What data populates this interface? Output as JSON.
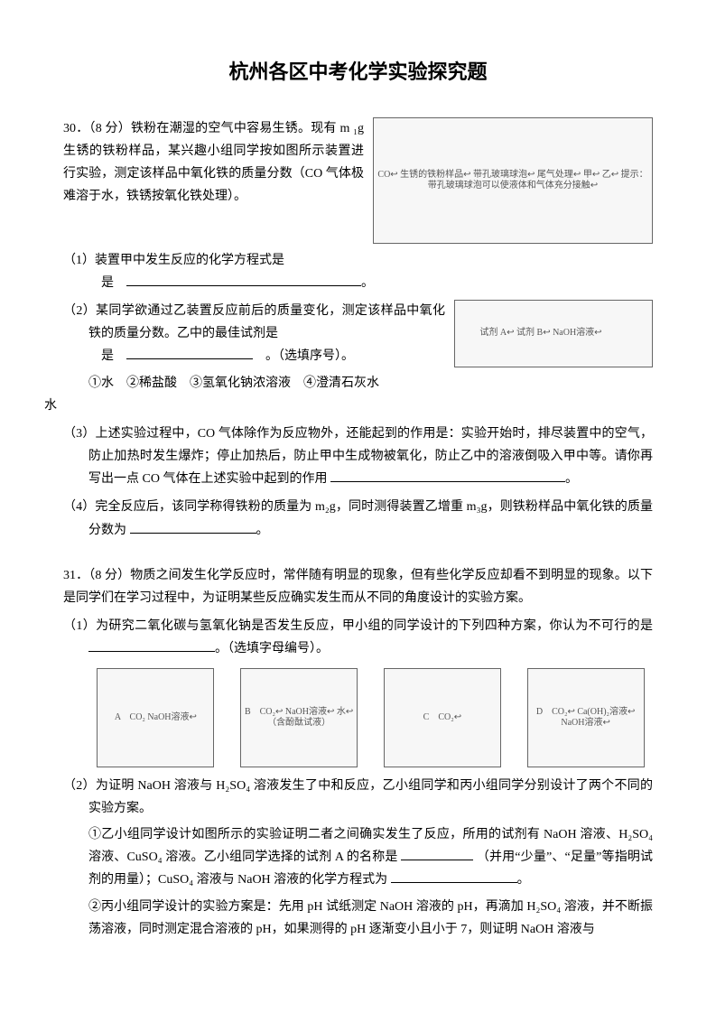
{
  "title": "杭州各区中考化学实验探究题",
  "q30": {
    "num": "30．",
    "points": "（8 分）",
    "stem": "铁粉在潮湿的空气中容易生锈。现有 m ₁g 生锈的铁粉样品，某兴趣小组同学按如图所示装置进行实验，测定该样品中氧化铁的质量分数（CO 气体极难溶于水，铁锈按氧化铁处理）。",
    "fig_labels": "CO↩ 生锈的铁粉样品↩ 带孔玻璃球泡↩ 尾气处理↩ 甲↩ 乙↩ 提示：带孔玻璃球泡可以使液体和气体充分接触↩",
    "s1": "（1）装置甲中发生反应的化学方程式是",
    "s1_end": "。",
    "s2a": "（2）某同学欲通过乙装置反应前后的质量变化，测定该样品中氧化铁的质量分数。乙中的最佳试剂是",
    "s2a_end": "。（选填序号）。",
    "fig_tubes_labels": "试剂 A↩ 试剂 B↩ NaOH溶液↩",
    "s2b": "①水　②稀盐酸　③氢氧化钠浓溶液　④澄清石灰水",
    "left_note": "水",
    "s3": "（3）上述实验过程中，CO 气体除作为反应物外，还能起到的作用是：实验开始时，排尽装置中的空气，防止加热时发生爆炸；停止加热后，防止甲中生成物被氧化，防止乙中的溶液倒吸入甲中等。请你再写出一点 CO 气体在上述实验中起到的作用",
    "s3_end": "。",
    "s4": "（4）完全反应后，该同学称得铁粉的质量为 m₂g，同时测得装置乙增重 m₃g，则铁粉样品中氧化铁的质量分数为",
    "s4_end": "。"
  },
  "q31": {
    "num": "31．",
    "points": "（8 分）",
    "stem": "物质之间发生化学反应时，常伴随有明显的现象，但有些化学反应却看不到明显的现象。以下是同学们在学习过程中，为证明某些反应确实发生而从不同的角度设计的实验方案。",
    "s1": "（1）为研究二氧化碳与氢氧化钠是否发生反应，甲小组的同学设计的下列四种方案，你认为不可行的是",
    "s1_end": "。（选填字母编号）。",
    "opts": {
      "A": "A　CO₂ NaOH溶液↩",
      "B": "B　CO₂↩ NaOH溶液↩ 水↩（含酚酞试液）",
      "C": "C　CO₂↩",
      "D": "D　CO₂↩ Ca(OH)₂溶液↩ NaOH溶液↩"
    },
    "s2": "（2）为证明 NaOH 溶液与 H₂SO₄ 溶液发生了中和反应，乙小组同学和丙小组同学分别设计了两个不同的实验方案。",
    "s2_1a": "①乙小组同学设计如图所示的实验证明二者之间确实发生了反应，所用的试剂有 NaOH 溶液、H₂SO₄ 溶液、CuSO₄ 溶液。乙小组同学选择的试剂 A 的名称是",
    "s2_1a_end": "（并用“少量”、“足量”等指明试剂的用量）；CuSO₄ 溶液与 NaOH 溶液的化学方程式为",
    "s2_1b_end": "。",
    "s2_2": "②丙小组同学设计的实验方案是：先用 pH 试纸测定 NaOH 溶液的 pH，再滴加 H₂SO₄ 溶液，并不断振荡溶液，同时测定混合溶液的 pH，如果测得的 pH 逐渐变小且小于 7，则证明 NaOH 溶液与"
  }
}
